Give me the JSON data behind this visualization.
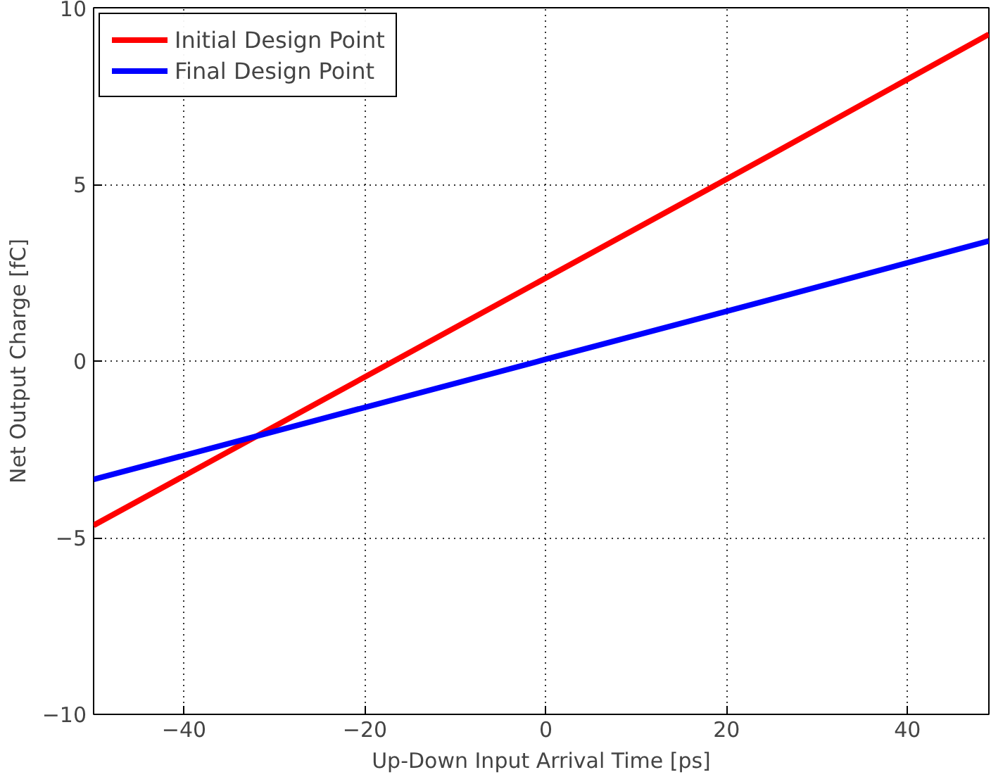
{
  "chart_data": {
    "type": "line",
    "xlabel": "Up-Down Input Arrival Time [ps]",
    "ylabel": "Net Output Charge [fC]",
    "xlim": [
      -50,
      49
    ],
    "ylim": [
      -10,
      10
    ],
    "xticks": [
      -40,
      -20,
      0,
      20,
      40
    ],
    "yticks": [
      -10,
      -5,
      0,
      5,
      10
    ],
    "grid": true,
    "legend": "top left",
    "line_style": "solid",
    "marker": "none",
    "series": [
      {
        "name": "Initial Design Point",
        "color": "#ff0000",
        "x": [
          -50,
          -25,
          0,
          25,
          49
        ],
        "values": [
          -4.65,
          -1.15,
          2.35,
          5.85,
          9.25
        ]
      },
      {
        "name": "Final Design Point",
        "color": "#0000ff",
        "x": [
          -50,
          -25,
          0,
          25,
          49
        ],
        "values": [
          -3.35,
          -1.65,
          0.05,
          1.75,
          3.4
        ]
      }
    ]
  }
}
